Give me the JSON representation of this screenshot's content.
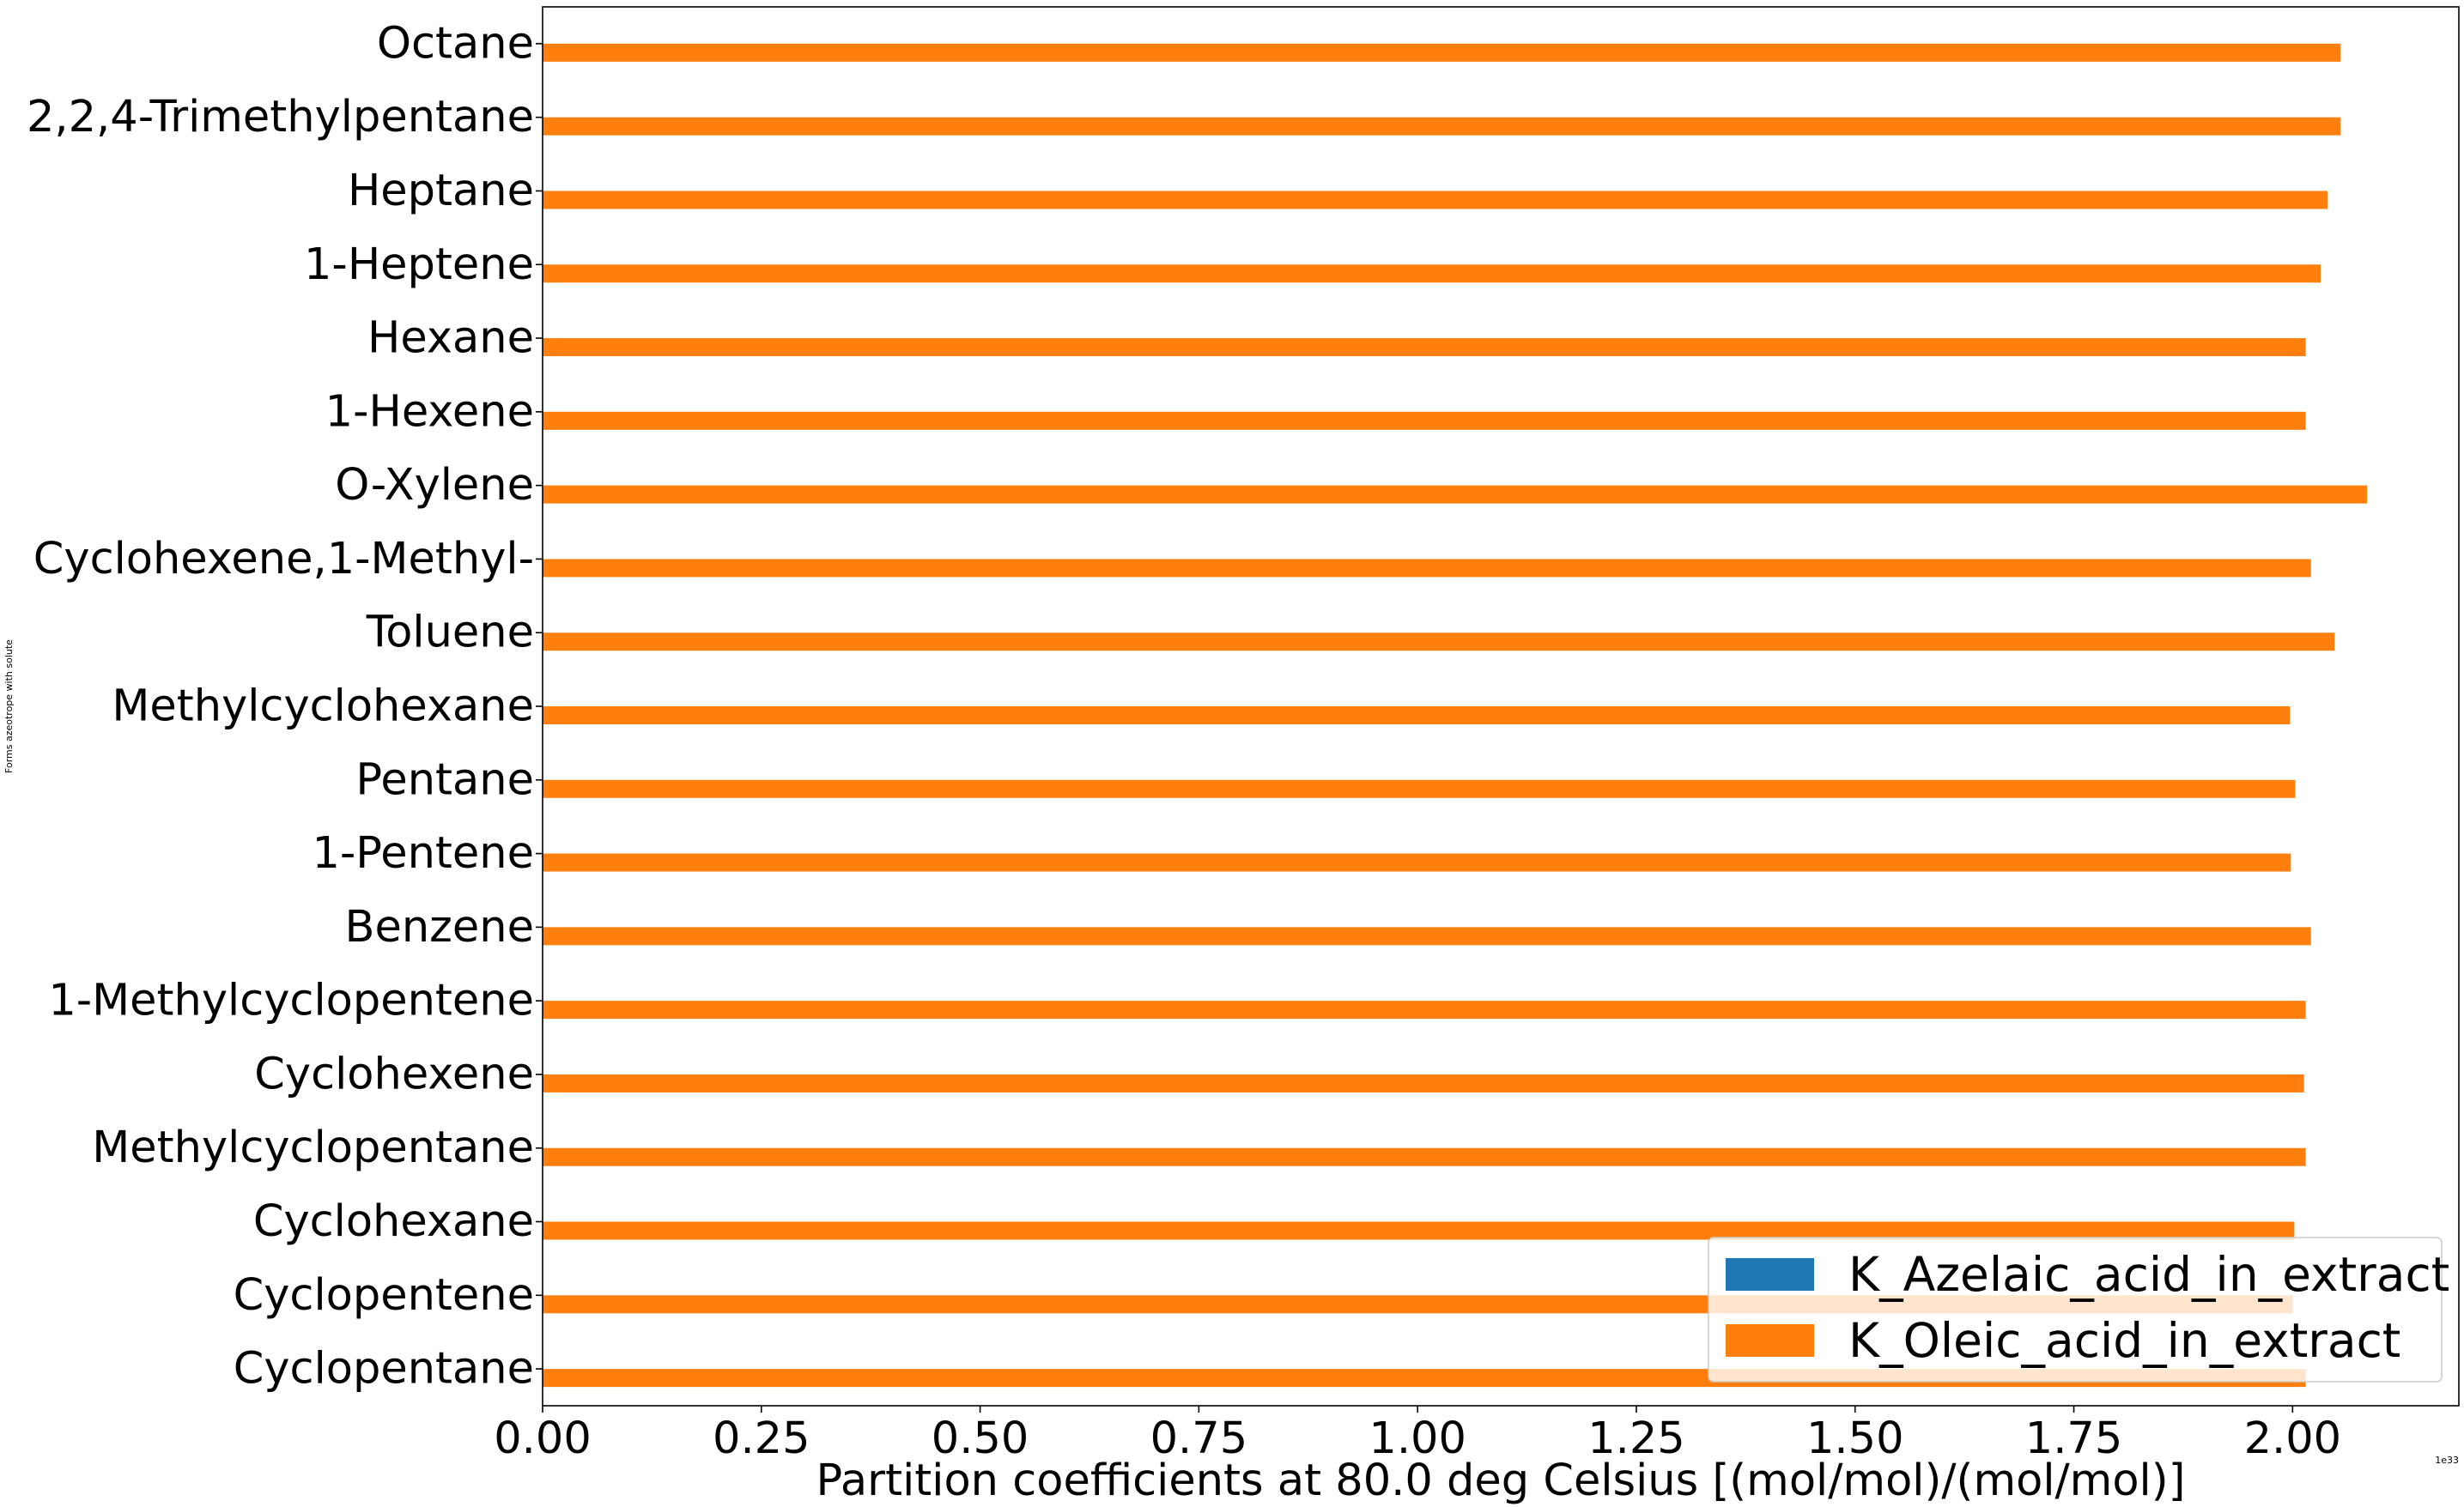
{
  "chart_data": {
    "type": "bar",
    "orientation": "horizontal",
    "ylabel": "Forms azeotrope with solute",
    "xlabel": "Partition coefficients at 80.0 deg Celsius [(mol/mol)/(mol/mol)]",
    "x_offset_label": "1e33",
    "xlim": [
      0,
      2.19
    ],
    "x_ticks": [
      0.0,
      0.25,
      0.5,
      0.75,
      1.0,
      1.25,
      1.5,
      1.75,
      2.0
    ],
    "x_tick_labels": [
      "0.00",
      "0.25",
      "0.50",
      "0.75",
      "1.00",
      "1.25",
      "1.50",
      "1.75",
      "2.00"
    ],
    "categories": [
      "Cyclopentane",
      "Cyclopentene",
      "Cyclohexane",
      "Methylcyclopentane",
      "Cyclohexene",
      "1-Methylcyclopentene",
      "Benzene",
      "1-Pentene",
      "Pentane",
      "Methylcyclohexane",
      "Toluene",
      "Cyclohexene,1-Methyl-",
      "O-Xylene",
      "1-Hexene",
      "Hexane",
      "1-Heptene",
      "Heptane",
      "2,2,4-Trimethylpentane",
      "Octane"
    ],
    "series": [
      {
        "name": "K_Azelaic_acid_in_extract",
        "color": "#1f77b4",
        "values": [
          0,
          0,
          0,
          0,
          0,
          0,
          0,
          0,
          0,
          0,
          0,
          0,
          0,
          0,
          0,
          0,
          0,
          0,
          0
        ]
      },
      {
        "name": "K_Oleic_acid_in_extract",
        "color": "#ff7f0e",
        "values": [
          2.015,
          2.0,
          2.002,
          2.015,
          2.013,
          2.015,
          2.021,
          1.998,
          2.003,
          1.997,
          2.048,
          2.021,
          2.085,
          2.015,
          2.015,
          2.032,
          2.04,
          2.055,
          2.055
        ]
      }
    ],
    "legend": {
      "placement": "lower-right"
    },
    "grid": false
  }
}
